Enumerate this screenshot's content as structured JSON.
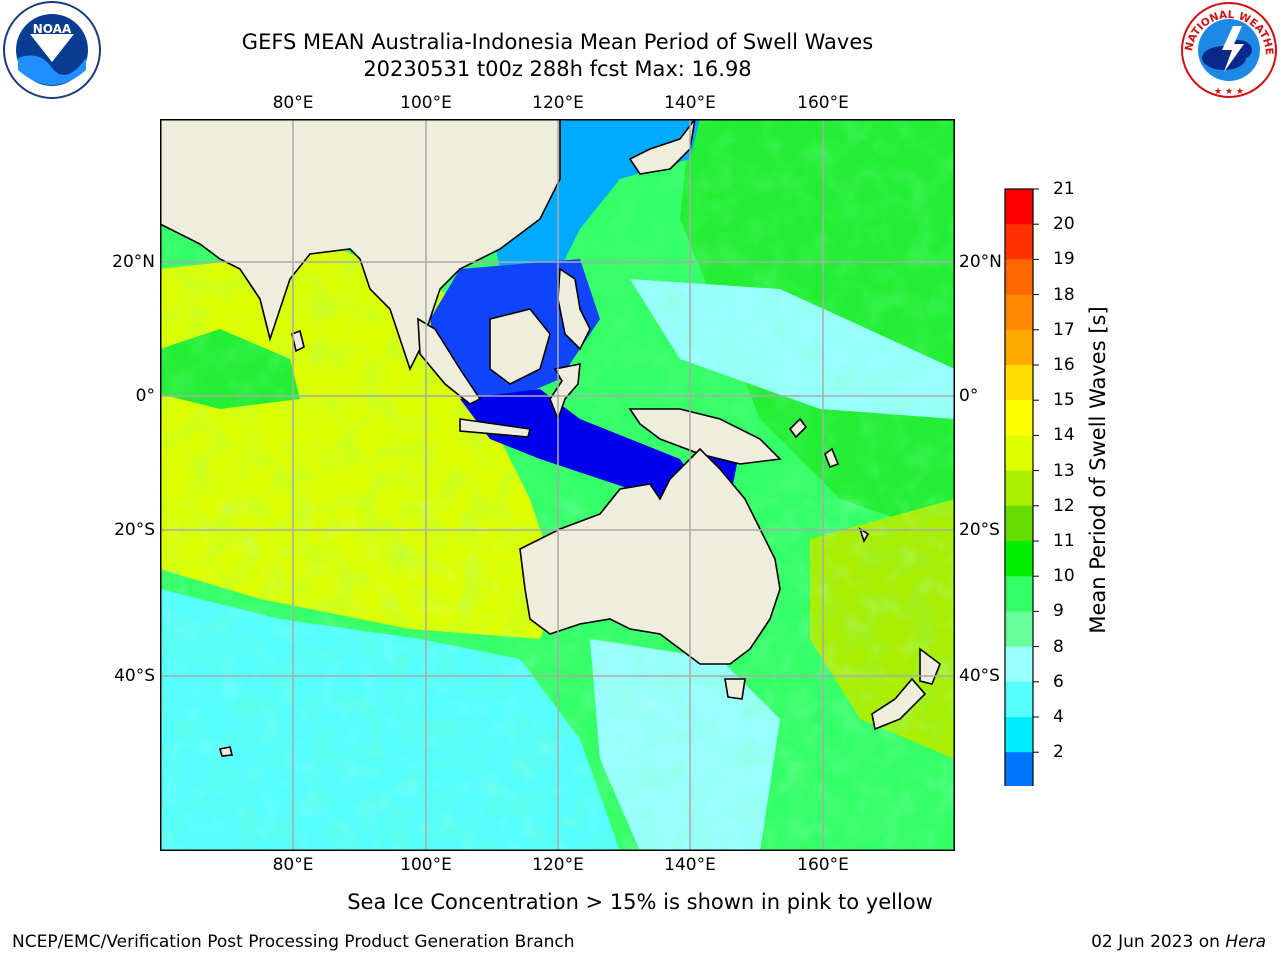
{
  "header": {
    "title_line1": "GEFS MEAN Australia-Indonesia Mean Period of Swell Waves",
    "title_line2": "20230531 t00z 288h fcst   Max: 16.98"
  },
  "axes": {
    "lon_labels": [
      "80°E",
      "100°E",
      "120°E",
      "140°E",
      "160°E"
    ],
    "lat_labels": [
      "20°N",
      "0°",
      "20°S",
      "40°S"
    ]
  },
  "colorbar": {
    "title": "Mean Period of Swell Waves [s]",
    "ticks": [
      "21",
      "20",
      "19",
      "18",
      "17",
      "16",
      "15",
      "14",
      "13",
      "12",
      "11",
      "10",
      "9",
      "8",
      "6",
      "4",
      "2"
    ],
    "colors": [
      "#ff0000",
      "#ff3300",
      "#ff6600",
      "#ff8800",
      "#ffaa00",
      "#ffdd00",
      "#ffff00",
      "#ddff00",
      "#aaee00",
      "#66dd00",
      "#00ee00",
      "#33ff66",
      "#66ff99",
      "#99ffff",
      "#55ffff",
      "#00eeff",
      "#0077ff",
      "#0000ff"
    ]
  },
  "logos": {
    "noaa_text": "NOAA",
    "nws_text": "NATIONAL WEATHER SERVICE"
  },
  "footer": {
    "note": "Sea Ice Concentration > 15% is shown in pink to yellow",
    "left": "NCEP/EMC/Verification Post Processing Product Generation Branch",
    "right_date": "02 Jun 2023 on ",
    "right_host": "Hera"
  }
}
